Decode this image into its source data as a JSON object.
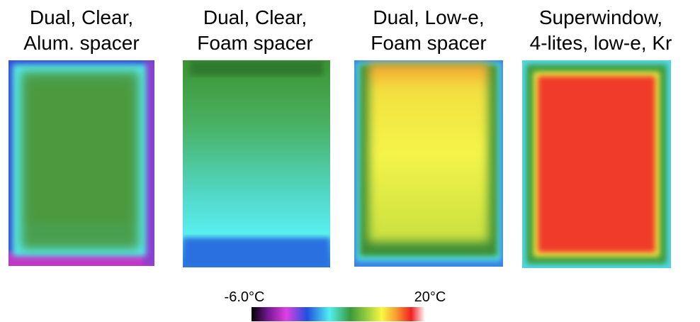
{
  "panels": [
    {
      "title": [
        "Dual, Clear,",
        "Alum. spacer"
      ]
    },
    {
      "title": [
        "Dual, Clear,",
        "Foam spacer"
      ]
    },
    {
      "title": [
        "Dual, Low-e,",
        "Foam spacer"
      ]
    },
    {
      "title": [
        "Superwindow,",
        "4-lites, low-e, Kr"
      ]
    }
  ],
  "colorbar": {
    "min_label": "-6.0°C",
    "max_label": "20°C"
  }
}
